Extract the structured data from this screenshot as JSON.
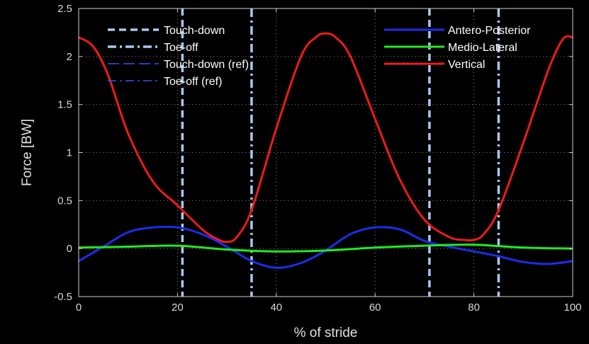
{
  "chart_data": {
    "type": "line",
    "xlabel": "% of stride",
    "ylabel": "Force [BW]",
    "xlim": [
      0,
      100
    ],
    "ylim": [
      -0.5,
      2.5
    ],
    "x_ticks": [
      0,
      20,
      40,
      60,
      80,
      100
    ],
    "y_ticks": [
      -0.5,
      0,
      0.5,
      1,
      1.5,
      2,
      2.5
    ],
    "x_tick_labels": [
      "0",
      "20",
      "40",
      "60",
      "80",
      "100"
    ],
    "y_tick_labels": [
      "-0.5",
      "0",
      "0.5",
      "1",
      "1.5",
      "2",
      "2.5"
    ],
    "grid": true,
    "background": "#000000",
    "foreground": "#d8d8d8",
    "vertical_lines": [
      {
        "name": "Touch-down",
        "style": "dashed",
        "color": "#a8c8f0",
        "x": [
          21,
          71
        ]
      },
      {
        "name": "Toe-off",
        "style": "dashdot",
        "color": "#a8c8f0",
        "x": [
          35,
          85
        ]
      },
      {
        "name": "Touch-down (ref)",
        "style": "longdash",
        "color": "#3355ee",
        "x": []
      },
      {
        "name": "Toe-off (ref)",
        "style": "dashdot",
        "color": "#3355ee",
        "x": []
      }
    ],
    "series": [
      {
        "name": "Antero-Posterior",
        "color": "#1a2ee8",
        "x": [
          0,
          5,
          10,
          15,
          20,
          25,
          30,
          35,
          40,
          45,
          50,
          55,
          60,
          65,
          70,
          75,
          80,
          85,
          90,
          95,
          100
        ],
        "y": [
          -0.13,
          0.02,
          0.17,
          0.22,
          0.22,
          0.15,
          0.02,
          -0.13,
          -0.2,
          -0.15,
          -0.02,
          0.15,
          0.22,
          0.2,
          0.08,
          0.02,
          -0.03,
          -0.08,
          -0.14,
          -0.16,
          -0.13
        ]
      },
      {
        "name": "Medio-Lateral",
        "color": "#22e822",
        "x": [
          0,
          10,
          20,
          30,
          40,
          50,
          60,
          70,
          80,
          90,
          100
        ],
        "y": [
          0.01,
          0.02,
          0.03,
          -0.01,
          -0.03,
          -0.02,
          0.01,
          0.03,
          0.04,
          0.01,
          0.0
        ]
      },
      {
        "name": "Vertical",
        "color": "#ee1a1a",
        "x": [
          0,
          3,
          6,
          10,
          15,
          20,
          25,
          28,
          30,
          32,
          35,
          40,
          45,
          48,
          50,
          52,
          55,
          60,
          65,
          70,
          75,
          78,
          80,
          82,
          85,
          90,
          95,
          98,
          100
        ],
        "y": [
          2.2,
          2.1,
          1.8,
          1.2,
          0.7,
          0.45,
          0.2,
          0.1,
          0.07,
          0.12,
          0.4,
          1.25,
          2.0,
          2.2,
          2.24,
          2.2,
          2.0,
          1.35,
          0.72,
          0.3,
          0.12,
          0.09,
          0.09,
          0.15,
          0.4,
          1.1,
          1.85,
          2.18,
          2.2
        ]
      }
    ],
    "legends": [
      {
        "placement": "top-left",
        "entries": [
          "Touch-down",
          "Toe-off",
          "Touch-down (ref)",
          "Toe-off (ref)"
        ]
      },
      {
        "placement": "top-right",
        "entries": [
          "Antero-Posterior",
          "Medio-Lateral",
          "Vertical"
        ]
      }
    ]
  }
}
